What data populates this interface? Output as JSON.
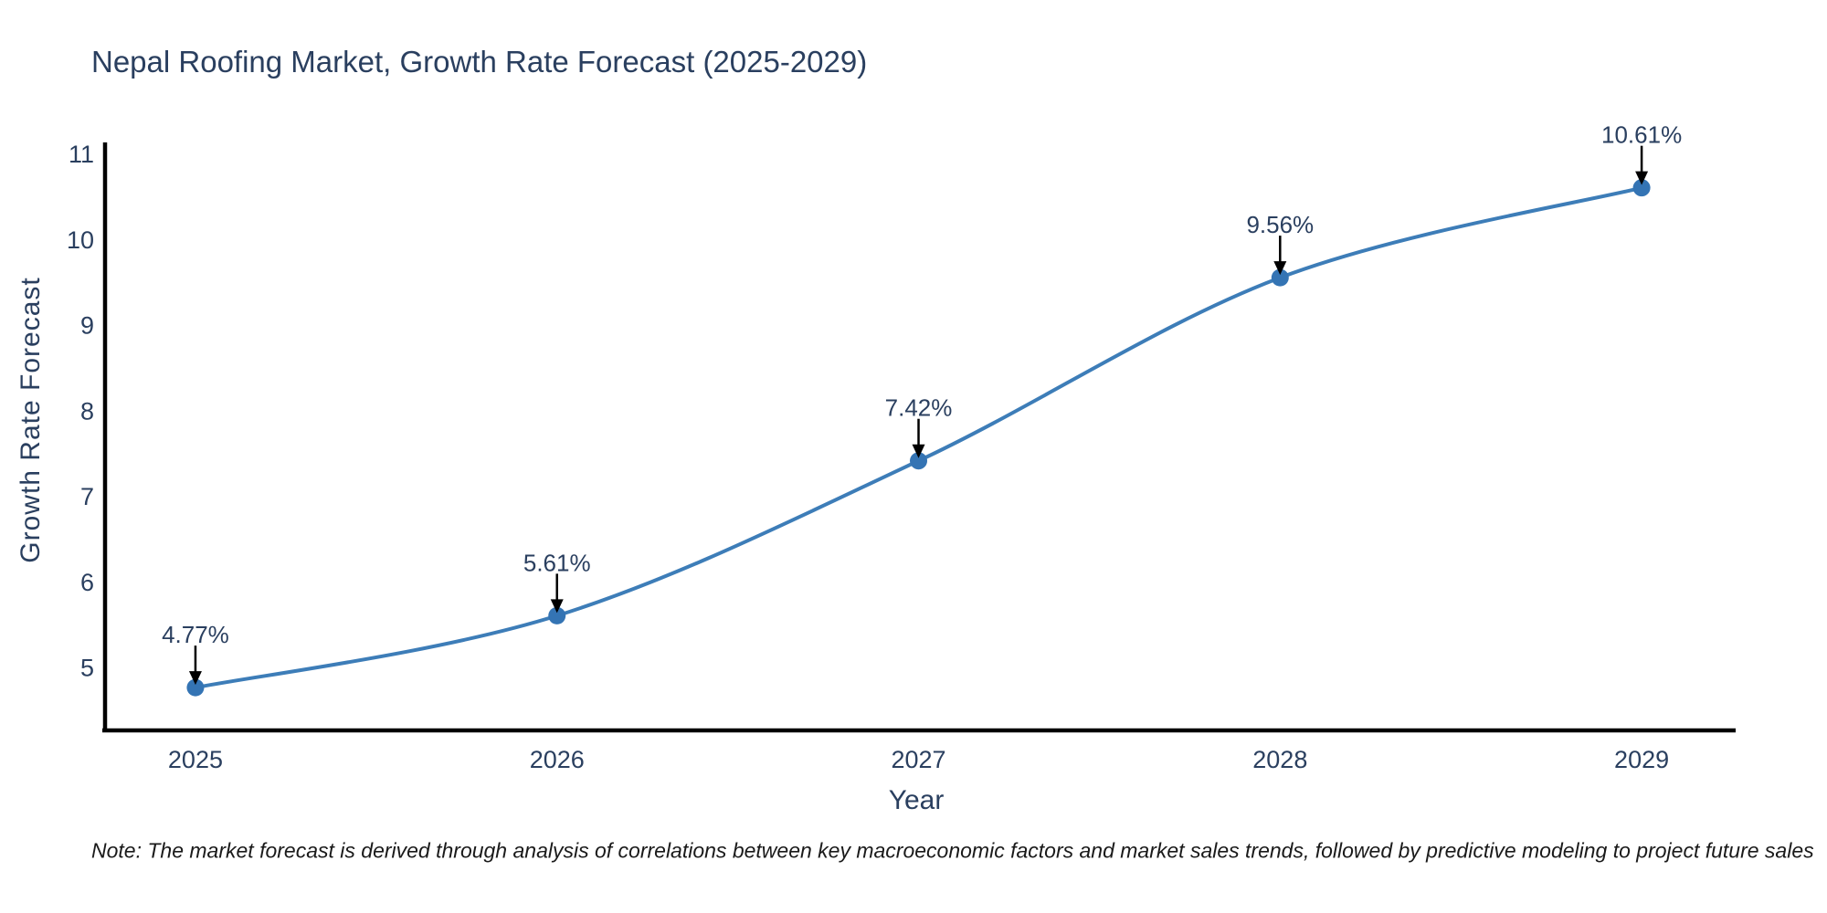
{
  "title": "Nepal Roofing Market, Growth Rate Forecast (2025-2029)",
  "note": "Note: The market forecast is derived through analysis of correlations between key macroeconomic factors and market sales trends, followed by predictive modeling to project future sales",
  "chart_data": {
    "type": "line",
    "title": "Nepal Roofing Market, Growth Rate Forecast (2025-2029)",
    "xlabel": "Year",
    "ylabel": "Growth Rate Forecast",
    "x": [
      2025,
      2026,
      2027,
      2028,
      2029
    ],
    "y": [
      4.77,
      5.61,
      7.42,
      9.56,
      10.61
    ],
    "point_labels": [
      "4.77%",
      "5.61%",
      "7.42%",
      "9.56%",
      "10.61%"
    ],
    "xtick_labels": [
      "2025",
      "2026",
      "2027",
      "2028",
      "2029"
    ],
    "ytick_values": [
      5,
      6,
      7,
      8,
      9,
      10,
      11
    ],
    "xlim": [
      2024.75,
      2029.26
    ],
    "ylim": [
      4.27,
      11.14
    ],
    "line_shape": "spline",
    "grid": false,
    "legend_position": "none",
    "colors": {
      "line": "#3d7db8",
      "marker": "#3474b4",
      "text": "#2a3f5f",
      "axis": "#000000",
      "arrow": "#000000"
    }
  }
}
